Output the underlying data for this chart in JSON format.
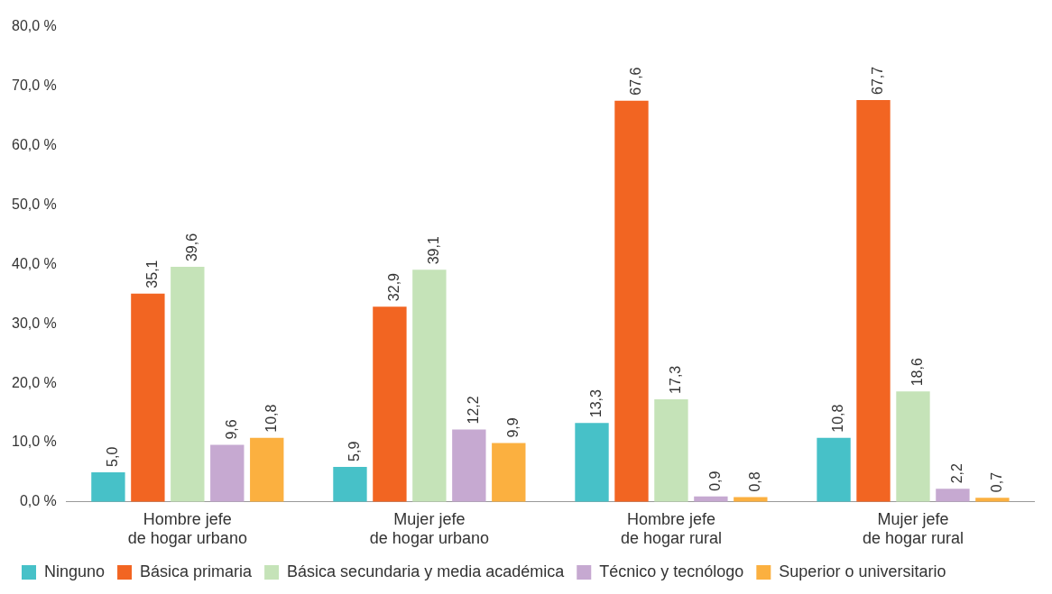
{
  "chart_data": {
    "type": "bar",
    "categories": [
      "Hombre jefe de hogar urbano",
      "Mujer jefe de hogar urbano",
      "Hombre jefe de hogar rural",
      "Mujer jefe de hogar rural"
    ],
    "series": [
      {
        "name": "Ninguno",
        "color": "#47c1c8",
        "values": [
          5.0,
          5.9,
          13.3,
          10.8
        ],
        "value_labels": [
          "5,0",
          "5,9",
          "13,3",
          "10,8"
        ]
      },
      {
        "name": "Básica primaria",
        "color": "#f26522",
        "values": [
          35.1,
          32.9,
          67.6,
          67.7
        ],
        "value_labels": [
          "35,1",
          "32,9",
          "67,6",
          "67,7"
        ]
      },
      {
        "name": "Básica secundaria y media académica",
        "color": "#c5e3b8",
        "values": [
          39.6,
          39.1,
          17.3,
          18.6
        ],
        "value_labels": [
          "39,6",
          "39,1",
          "17,3",
          "18,6"
        ]
      },
      {
        "name": "Técnico y tecnólogo",
        "color": "#c6a9d1",
        "values": [
          9.6,
          12.2,
          0.9,
          2.2
        ],
        "value_labels": [
          "9,6",
          "12,2",
          "0,9",
          "2,2"
        ]
      },
      {
        "name": "Superior o universitario",
        "color": "#fbb040",
        "values": [
          10.8,
          9.9,
          0.8,
          0.7
        ],
        "value_labels": [
          "10,8",
          "9,9",
          "0,8",
          "0,7"
        ]
      }
    ],
    "ylim": [
      0,
      80
    ],
    "yticks": [
      {
        "value": 0,
        "label": "0,0 %"
      },
      {
        "value": 10,
        "label": "10,0 %"
      },
      {
        "value": 20,
        "label": "20,0 %"
      },
      {
        "value": 30,
        "label": "30,0 %"
      },
      {
        "value": 40,
        "label": "40,0 %"
      },
      {
        "value": 50,
        "label": "50,0 %"
      },
      {
        "value": 60,
        "label": "60,0 %"
      },
      {
        "value": 70,
        "label": "70,0 %"
      },
      {
        "value": 80,
        "label": "80,0 %"
      }
    ],
    "grid": false,
    "legend": "bottom"
  }
}
